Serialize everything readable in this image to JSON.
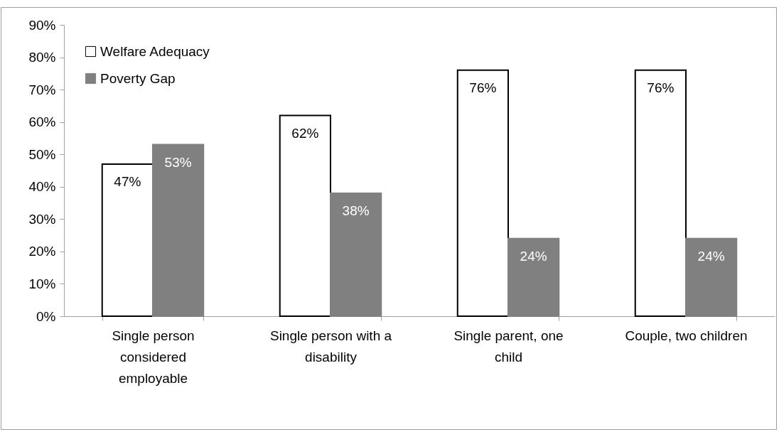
{
  "chart_data": {
    "type": "bar",
    "categories": [
      "Single person considered employable",
      "Single person with a disability",
      "Single parent, one child",
      "Couple, two children"
    ],
    "series": [
      {
        "name": "Welfare Adequacy",
        "color": "#ffffff",
        "values": [
          47,
          62,
          76,
          76
        ],
        "value_labels": [
          "47%",
          "62%",
          "76%",
          "76%"
        ]
      },
      {
        "name": "Poverty Gap",
        "color": "#808080",
        "values": [
          53,
          38,
          24,
          24
        ],
        "value_labels": [
          "53%",
          "38%",
          "24%",
          "24%"
        ]
      }
    ],
    "ylim": [
      0,
      90
    ],
    "yticks": [
      {
        "value": 0,
        "label": "0%"
      },
      {
        "value": 10,
        "label": "10%"
      },
      {
        "value": 20,
        "label": "20%"
      },
      {
        "value": 30,
        "label": "30%"
      },
      {
        "value": 40,
        "label": "40%"
      },
      {
        "value": 50,
        "label": "50%"
      },
      {
        "value": 60,
        "label": "60%"
      },
      {
        "value": 70,
        "label": "70%"
      },
      {
        "value": 80,
        "label": "80%"
      },
      {
        "value": 90,
        "label": "90%"
      }
    ],
    "legend": "top left",
    "grid": false
  }
}
